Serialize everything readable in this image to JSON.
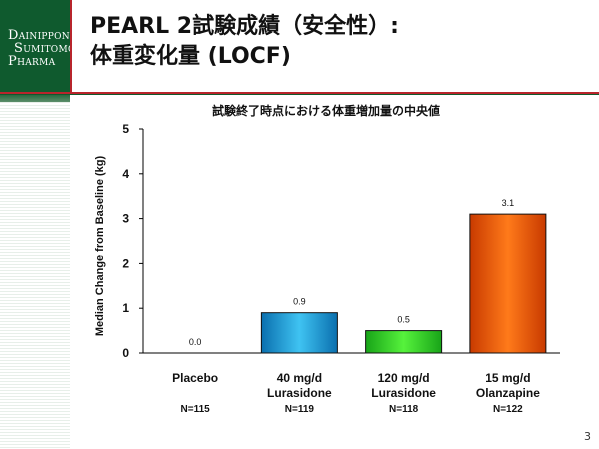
{
  "slide": {
    "title_line1": "PEARL 2試験成績（安全性）:",
    "title_line2": "体重変化量 (LOCF)",
    "page_number": "3"
  },
  "brand": {
    "line1_cap": "D",
    "line1_rest": "AINIPPON",
    "line2_cap": "S",
    "line2_rest": "UMITOMO",
    "line3_cap": "P",
    "line3_rest": "HARMA",
    "color": "#0f5a2e",
    "accent": "#b8252c"
  },
  "chart_data": {
    "type": "bar",
    "title": "試験終了時点における体重増加量の中央値",
    "xlabel": "",
    "ylabel": "Median Change from Baseline (kg)",
    "ylim": [
      0,
      5
    ],
    "yticks": [
      0,
      1,
      2,
      3,
      4,
      5
    ],
    "categories": [
      [
        "Placebo"
      ],
      [
        "40 mg/d",
        "Lurasidone"
      ],
      [
        "120 mg/d",
        "Lurasidone"
      ],
      [
        "15 mg/d",
        "Olanzapine"
      ]
    ],
    "n_labels": [
      "N=115",
      "N=119",
      "N=118",
      "N=122"
    ],
    "values": [
      0.0,
      0.9,
      0.5,
      3.1
    ],
    "value_labels": [
      "0.0",
      "0.9",
      "0.5",
      "3.1"
    ],
    "bar_colors": [
      [
        "#1a1a1a",
        "#1a1a1a"
      ],
      [
        "#0a6fae",
        "#3fc3f2"
      ],
      [
        "#18a418",
        "#56f23c"
      ],
      [
        "#c83a00",
        "#ff7a1a"
      ]
    ],
    "grid": false
  }
}
